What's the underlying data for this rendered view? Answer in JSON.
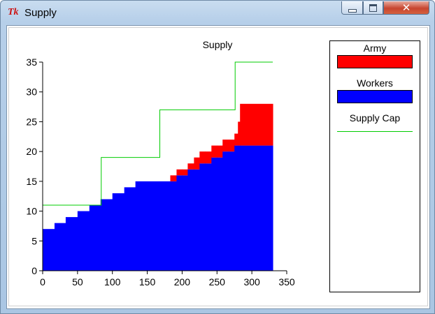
{
  "window": {
    "title": "Supply",
    "app_icon_text": "Tk"
  },
  "colors": {
    "army": "#ff0000",
    "workers": "#0000ff",
    "supply_cap": "#00cc00"
  },
  "legend": {
    "items": [
      {
        "label": "Army",
        "type": "swatch",
        "color": "#ff0000"
      },
      {
        "label": "Workers",
        "type": "swatch",
        "color": "#0000ff"
      },
      {
        "label": "Supply Cap",
        "type": "line",
        "color": "#00cc00"
      }
    ]
  },
  "chart_data": {
    "type": "area",
    "title": "Supply",
    "xlim": [
      0,
      350
    ],
    "ylim": [
      0,
      35
    ],
    "xticks": [
      0,
      50,
      100,
      150,
      200,
      250,
      300,
      350
    ],
    "yticks": [
      0,
      5,
      10,
      15,
      20,
      25,
      30,
      35
    ],
    "grid": false,
    "legend_position": "right",
    "series": [
      {
        "name": "Workers",
        "kind": "stacked-step-area",
        "color": "#0000ff",
        "points": [
          [
            0,
            7
          ],
          [
            17,
            8
          ],
          [
            33,
            9
          ],
          [
            50,
            10
          ],
          [
            67,
            11
          ],
          [
            83,
            12
          ],
          [
            100,
            13
          ],
          [
            117,
            14
          ],
          [
            133,
            15
          ],
          [
            183,
            15
          ],
          [
            192,
            16
          ],
          [
            208,
            17
          ],
          [
            225,
            18
          ],
          [
            242,
            19
          ],
          [
            258,
            20
          ],
          [
            275,
            21
          ],
          [
            330,
            21
          ]
        ]
      },
      {
        "name": "Army",
        "kind": "stacked-step-area",
        "color": "#ff0000",
        "points": [
          [
            0,
            0
          ],
          [
            167,
            0
          ],
          [
            183,
            1
          ],
          [
            192,
            1
          ],
          [
            200,
            1
          ],
          [
            208,
            1
          ],
          [
            217,
            2
          ],
          [
            225,
            2
          ],
          [
            233,
            2
          ],
          [
            242,
            2
          ],
          [
            250,
            2
          ],
          [
            258,
            2
          ],
          [
            267,
            2
          ],
          [
            275,
            2
          ],
          [
            280,
            4
          ],
          [
            283,
            7
          ],
          [
            330,
            7
          ]
        ]
      },
      {
        "name": "Supply Cap",
        "kind": "step-line",
        "color": "#00cc00",
        "points": [
          [
            0,
            11
          ],
          [
            83,
            11
          ],
          [
            84,
            19
          ],
          [
            167,
            19
          ],
          [
            168,
            27
          ],
          [
            275,
            27
          ],
          [
            276,
            35
          ],
          [
            330,
            35
          ]
        ]
      }
    ]
  }
}
